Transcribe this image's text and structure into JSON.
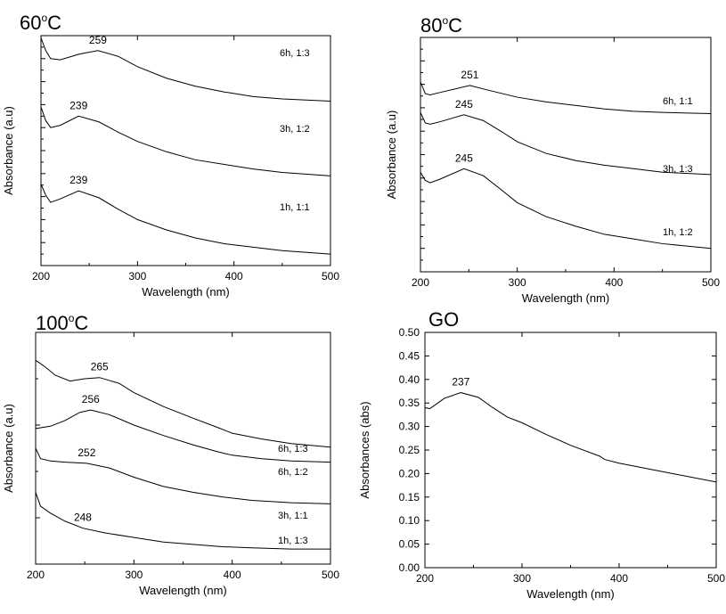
{
  "chart_data": [
    {
      "type": "line",
      "title": "60",
      "title_sup": "o",
      "title_suffix": "C",
      "xlabel": "Wavelength (nm)",
      "ylabel": "Absorbance (a.u)",
      "xlim": [
        200,
        500
      ],
      "ylim": [
        0,
        10
      ],
      "x_ticks": [
        200,
        300,
        400,
        500
      ],
      "y_ticks": [],
      "y_tick_marks": 20,
      "grid": false,
      "series": [
        {
          "name": "6h, 1:3",
          "peak": 259,
          "x": [
            200,
            205,
            210,
            220,
            240,
            259,
            280,
            300,
            330,
            360,
            390,
            420,
            450,
            500
          ],
          "y": [
            9.9,
            9.35,
            9.0,
            8.95,
            9.2,
            9.35,
            9.1,
            8.65,
            8.15,
            7.8,
            7.55,
            7.35,
            7.25,
            7.15
          ]
        },
        {
          "name": "3h, 1:2",
          "peak": 239,
          "x": [
            200,
            205,
            210,
            220,
            239,
            260,
            280,
            300,
            330,
            360,
            390,
            420,
            450,
            500
          ],
          "y": [
            6.9,
            6.3,
            6.0,
            6.1,
            6.5,
            6.25,
            5.8,
            5.4,
            4.95,
            4.6,
            4.4,
            4.2,
            4.05,
            3.9
          ]
        },
        {
          "name": "1h, 1:1",
          "peak": 239,
          "x": [
            200,
            205,
            210,
            220,
            239,
            260,
            280,
            300,
            330,
            360,
            390,
            420,
            450,
            500
          ],
          "y": [
            3.55,
            3.05,
            2.75,
            2.9,
            3.25,
            2.95,
            2.45,
            2.0,
            1.55,
            1.2,
            0.95,
            0.8,
            0.65,
            0.5
          ]
        }
      ]
    },
    {
      "type": "line",
      "title": "80",
      "title_sup": "o",
      "title_suffix": "C",
      "xlabel": "Wavelength (nm)",
      "ylabel": "Absorbance (a.u)",
      "xlim": [
        200,
        500
      ],
      "ylim": [
        0,
        10
      ],
      "x_ticks": [
        200,
        300,
        400,
        500
      ],
      "y_ticks": [],
      "y_tick_marks": 20,
      "grid": false,
      "series": [
        {
          "name": "6h, 1:1",
          "peak": 251,
          "x": [
            200,
            205,
            210,
            220,
            251,
            270,
            300,
            330,
            360,
            390,
            420,
            450,
            500
          ],
          "y": [
            8.1,
            7.6,
            7.55,
            7.65,
            7.95,
            7.75,
            7.45,
            7.25,
            7.1,
            6.95,
            6.85,
            6.8,
            6.75
          ]
        },
        {
          "name": "3h, 1:3",
          "peak": 245,
          "x": [
            200,
            205,
            210,
            220,
            245,
            265,
            285,
            300,
            330,
            360,
            390,
            420,
            450,
            500
          ],
          "y": [
            6.8,
            6.35,
            6.3,
            6.4,
            6.7,
            6.45,
            5.95,
            5.55,
            5.05,
            4.75,
            4.55,
            4.4,
            4.25,
            4.15
          ]
        },
        {
          "name": "1h, 1:2",
          "peak": 245,
          "x": [
            200,
            205,
            210,
            220,
            245,
            265,
            285,
            300,
            330,
            360,
            390,
            420,
            450,
            500
          ],
          "y": [
            4.25,
            3.9,
            3.8,
            3.95,
            4.4,
            4.1,
            3.45,
            2.95,
            2.35,
            1.95,
            1.6,
            1.4,
            1.2,
            1.0
          ]
        }
      ]
    },
    {
      "type": "line",
      "title": "100",
      "title_sup": "o",
      "title_suffix": "C",
      "xlabel": "Wavelength (nm)",
      "ylabel": "Absorbance (a.u)",
      "xlim": [
        200,
        500
      ],
      "ylim": [
        0,
        10
      ],
      "x_ticks": [
        200,
        300,
        400,
        500
      ],
      "y_ticks": [],
      "y_tick_marks": 5,
      "grid": false,
      "series": [
        {
          "name": "6h, 1:3",
          "peak": 265,
          "x": [
            200,
            210,
            220,
            235,
            250,
            265,
            285,
            300,
            330,
            360,
            385,
            400,
            430,
            460,
            500
          ],
          "y": [
            8.8,
            8.5,
            8.15,
            7.9,
            8.0,
            8.05,
            7.8,
            7.4,
            6.8,
            6.3,
            5.9,
            5.65,
            5.4,
            5.2,
            5.05
          ]
        },
        {
          "name": "6h, 1:2",
          "peak": 256,
          "x": [
            200,
            215,
            230,
            245,
            256,
            275,
            300,
            330,
            360,
            385,
            400,
            430,
            460,
            500
          ],
          "y": [
            5.85,
            5.95,
            6.2,
            6.55,
            6.65,
            6.45,
            6.0,
            5.55,
            5.15,
            4.85,
            4.7,
            4.55,
            4.45,
            4.4
          ]
        },
        {
          "name": "3h, 1:1",
          "peak": 252,
          "x": [
            200,
            205,
            215,
            230,
            252,
            275,
            300,
            330,
            360,
            390,
            420,
            460,
            500
          ],
          "y": [
            5.0,
            4.55,
            4.45,
            4.4,
            4.35,
            4.15,
            3.75,
            3.35,
            3.1,
            2.9,
            2.75,
            2.65,
            2.6
          ]
        },
        {
          "name": "1h, 1:3",
          "peak": 248,
          "x": [
            200,
            205,
            215,
            230,
            248,
            270,
            300,
            330,
            360,
            390,
            420,
            460,
            500
          ],
          "y": [
            3.1,
            2.5,
            2.2,
            1.85,
            1.55,
            1.35,
            1.15,
            0.95,
            0.85,
            0.75,
            0.7,
            0.65,
            0.65
          ]
        }
      ]
    },
    {
      "type": "line",
      "title": "GO",
      "xlabel": "Wavelength (nm)",
      "ylabel": "Absorbances (abs)",
      "xlim": [
        200,
        500
      ],
      "ylim": [
        0.0,
        0.5
      ],
      "x_ticks": [
        200,
        300,
        400,
        500
      ],
      "y_ticks": [
        0.0,
        0.05,
        0.1,
        0.15,
        0.2,
        0.25,
        0.3,
        0.35,
        0.4,
        0.45,
        0.5
      ],
      "y_tick_labels": [
        "0.00",
        "0.05",
        "0.10",
        "0.15",
        "0.20",
        "0.25",
        "0.30",
        "0.35",
        "0.40",
        "0.45",
        "0.50"
      ],
      "grid": false,
      "series": [
        {
          "name": "",
          "peak": 237,
          "x": [
            200,
            205,
            210,
            220,
            237,
            255,
            270,
            285,
            300,
            325,
            350,
            380,
            385,
            400,
            430,
            460,
            500
          ],
          "y": [
            0.34,
            0.338,
            0.345,
            0.36,
            0.372,
            0.362,
            0.34,
            0.32,
            0.308,
            0.283,
            0.26,
            0.237,
            0.23,
            0.222,
            0.21,
            0.198,
            0.182
          ]
        }
      ]
    }
  ]
}
